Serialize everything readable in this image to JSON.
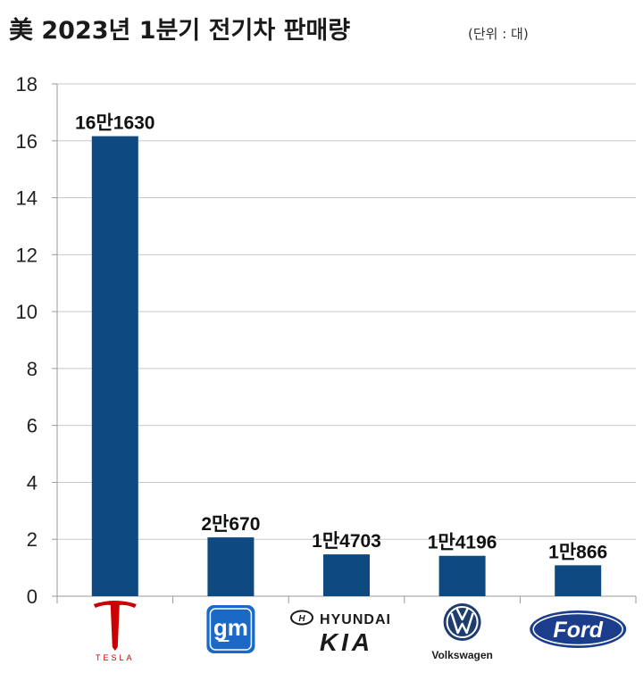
{
  "title": "美 2023년 1분기 전기차 판매량",
  "unit": "(단위 : 대)",
  "colors": {
    "bar": "#0e4a80",
    "grid": "#c8c8c8",
    "axis": "#9a9a9a",
    "tesla": "#cc0000",
    "gm": "#1b69c4",
    "ford": "#1c3c8c",
    "vw": "#1e3d6e"
  },
  "chart_data": {
    "type": "bar",
    "title": "美 2023년 1분기 전기차 판매량",
    "ylim": [
      0,
      18
    ],
    "yticks": [
      "0",
      "2",
      "4",
      "6",
      "8",
      "10",
      "12",
      "14",
      "16",
      "18"
    ],
    "grid": true,
    "categories": [
      "Tesla",
      "GM",
      "Hyundai/Kia",
      "Volkswagen",
      "Ford"
    ],
    "values": [
      16.163,
      2.067,
      1.4703,
      1.4196,
      1.0866
    ],
    "data_labels": [
      "16만1630",
      "2만670",
      "1만4703",
      "1만4196",
      "1만866"
    ],
    "logos": [
      {
        "name": "tesla-logo",
        "text": "TESLA"
      },
      {
        "name": "gm-logo",
        "text": "gm"
      },
      {
        "name": "hyundai-kia-logo",
        "text": "HYUNDAI",
        "text2": "KIA"
      },
      {
        "name": "volkswagen-logo",
        "text": "Volkswagen"
      },
      {
        "name": "ford-logo",
        "text": "Ford"
      }
    ]
  }
}
